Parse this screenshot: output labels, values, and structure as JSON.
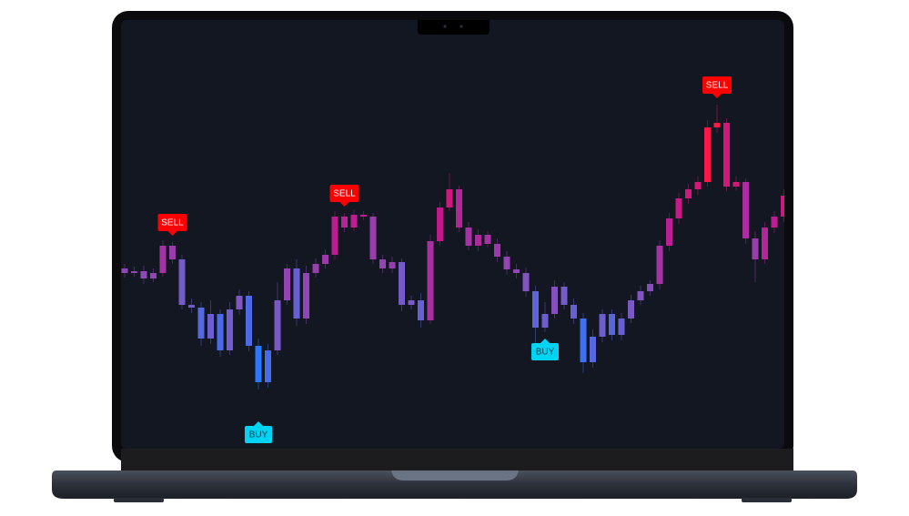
{
  "chart_data": {
    "type": "candlestick",
    "ylim": [
      0,
      470
    ],
    "colors": [
      "#2979ff",
      "#7e57c2",
      "#c2188f",
      "#ff1744"
    ],
    "open": [
      195,
      190,
      192,
      184,
      190,
      220,
      205,
      155,
      152,
      118,
      145,
      105,
      150,
      165,
      110,
      70,
      105,
      160,
      195,
      140,
      190,
      200,
      210,
      252,
      240,
      254,
      252,
      205,
      195,
      202,
      155,
      160,
      138,
      225,
      262,
      282,
      240,
      220,
      232,
      222,
      208,
      194,
      190,
      170,
      130,
      145,
      175,
      155,
      140,
      92,
      120,
      145,
      122,
      140,
      160,
      170,
      178,
      220,
      250,
      272,
      282,
      290,
      350,
      355,
      285,
      290,
      228,
      205,
      240,
      252
    ],
    "high": [
      200,
      197,
      198,
      195,
      226,
      224,
      210,
      162,
      158,
      160,
      150,
      158,
      172,
      170,
      118,
      112,
      180,
      200,
      205,
      198,
      206,
      216,
      258,
      256,
      260,
      258,
      256,
      210,
      208,
      206,
      165,
      168,
      232,
      268,
      300,
      286,
      246,
      238,
      236,
      228,
      214,
      200,
      196,
      176,
      158,
      182,
      180,
      162,
      146,
      128,
      150,
      150,
      146,
      166,
      176,
      182,
      226,
      256,
      278,
      288,
      296,
      358,
      375,
      360,
      296,
      294,
      236,
      246,
      258,
      282
    ],
    "low": [
      185,
      186,
      178,
      180,
      186,
      200,
      150,
      146,
      110,
      112,
      98,
      100,
      144,
      104,
      62,
      64,
      100,
      155,
      132,
      134,
      185,
      195,
      205,
      235,
      236,
      248,
      200,
      190,
      190,
      148,
      150,
      130,
      134,
      220,
      258,
      235,
      215,
      214,
      218,
      202,
      188,
      184,
      164,
      112,
      125,
      140,
      150,
      134,
      80,
      86,
      114,
      116,
      116,
      135,
      155,
      165,
      172,
      214,
      244,
      266,
      276,
      285,
      344,
      280,
      280,
      222,
      180,
      200,
      234,
      246
    ],
    "close": [
      190,
      192,
      184,
      190,
      220,
      205,
      155,
      152,
      118,
      145,
      105,
      150,
      165,
      110,
      70,
      105,
      160,
      195,
      140,
      190,
      200,
      210,
      252,
      240,
      254,
      252,
      205,
      195,
      202,
      155,
      160,
      138,
      225,
      262,
      282,
      240,
      220,
      232,
      222,
      208,
      194,
      190,
      170,
      130,
      145,
      175,
      155,
      140,
      92,
      120,
      145,
      122,
      140,
      160,
      170,
      178,
      220,
      250,
      272,
      282,
      290,
      350,
      355,
      285,
      290,
      228,
      205,
      240,
      252,
      275
    ],
    "annotations": [
      {
        "text": "SELL",
        "color": "#ff0000"
      },
      {
        "text": "BUY",
        "color": "#00d4f5"
      },
      {
        "text": "SELL",
        "color": "#ff0000"
      },
      {
        "text": "BUY",
        "color": "#00d4f5"
      },
      {
        "text": "SELL",
        "color": "#ff0000"
      }
    ]
  }
}
